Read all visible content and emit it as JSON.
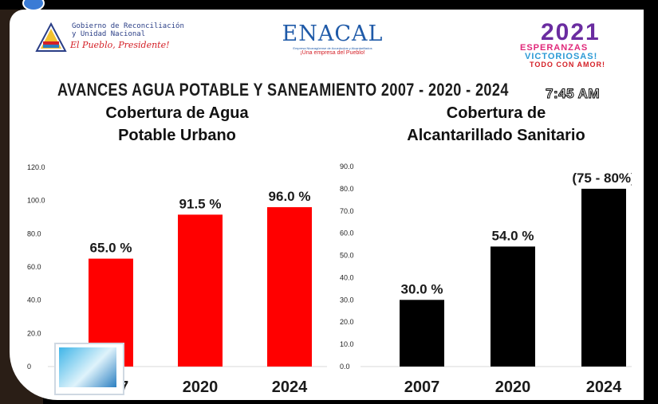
{
  "header": {
    "gov_logo": {
      "line1": "Gobierno de Reconciliación",
      "line2": "y Unidad Nacional",
      "slogan": "El Pueblo, Presidente!"
    },
    "enacal_logo": {
      "name": "ENACAL",
      "subtitle": "Empresa Nicaragüense de Acueductos y Alcantarillados",
      "tagline": "¡Una empresa del Pueblo!"
    },
    "badge": {
      "year": "2021",
      "line1": "ESPERANZAS",
      "line2": "VICTORIOSAS!",
      "line3": "TODO CON AMOR!"
    },
    "main_title": "AVANCES AGUA POTABLE Y SANEAMIENTO 2007 - 2020 - 2024",
    "timestamp": "7:45 AM"
  },
  "colors": {
    "left_bars": "#ff0000",
    "right_bars": "#000000",
    "background": "#ffffff"
  },
  "icons": [
    "facebook-badge-icon",
    "channel-logo-icon"
  ],
  "chart_data": [
    {
      "type": "bar",
      "title": "Cobertura de Agua Potable Urbano",
      "title_lines": [
        "Cobertura de Agua",
        "Potable Urbano"
      ],
      "categories": [
        "2007",
        "2020",
        "2024"
      ],
      "values": [
        65.0,
        91.5,
        96.0
      ],
      "data_labels": [
        "65.0 %",
        "91.5 %",
        "96.0 %"
      ],
      "yticks": [
        "0",
        "20.0",
        "40.0",
        "60.0",
        "80.0",
        "100.0",
        "120.0"
      ],
      "ylim": [
        0,
        120
      ],
      "xlabel": "",
      "ylabel": "",
      "grid": false
    },
    {
      "type": "bar",
      "title": "Cobertura de Alcantarillado Sanitario",
      "title_lines": [
        "Cobertura de",
        "Alcantarillado Sanitario"
      ],
      "categories": [
        "2007",
        "2020",
        "2024"
      ],
      "values": [
        30.0,
        54.0,
        80.0
      ],
      "data_labels": [
        "30.0 %",
        "54.0 %",
        "(75 - 80%)"
      ],
      "yticks": [
        "0.0",
        "10.0",
        "20.0",
        "30.0",
        "40.0",
        "50.0",
        "60.0",
        "70.0",
        "80.0",
        "90.0"
      ],
      "ylim": [
        0,
        90
      ],
      "xlabel": "",
      "ylabel": "",
      "grid": false
    }
  ]
}
